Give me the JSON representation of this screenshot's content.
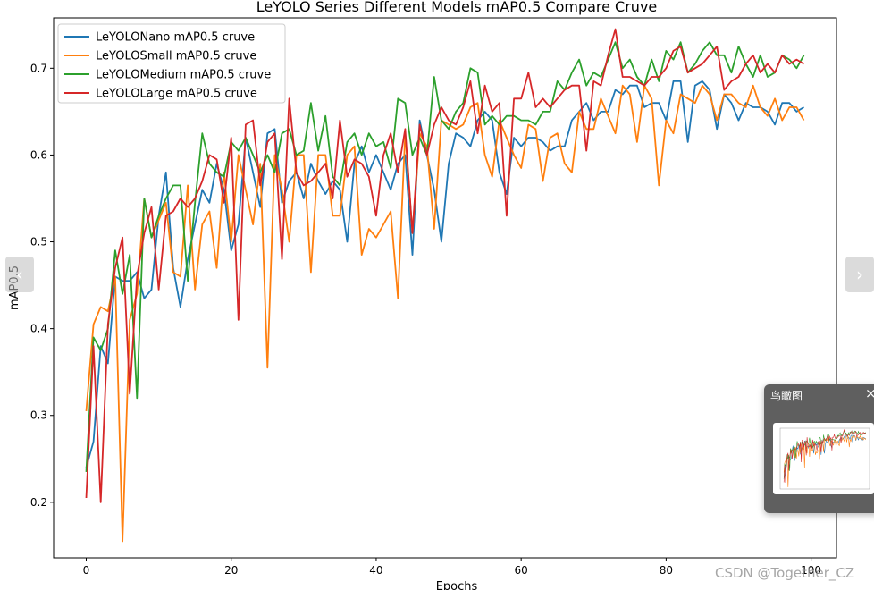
{
  "chart_data": {
    "type": "line",
    "title": "LeYOLO Series Different Models mAP0.5 Compare Cruve",
    "xlabel": "Epochs",
    "ylabel": "mAP0.5",
    "xlim": [
      -4.5,
      103.5
    ],
    "ylim": [
      0.136,
      0.758
    ],
    "xticks": [
      0,
      20,
      40,
      60,
      80,
      100
    ],
    "yticks": [
      0.2,
      0.3,
      0.4,
      0.5,
      0.6,
      0.7
    ],
    "grid": false,
    "legend_position": "top-left",
    "x": [
      0,
      1,
      2,
      3,
      4,
      5,
      6,
      7,
      8,
      9,
      10,
      11,
      12,
      13,
      14,
      15,
      16,
      17,
      18,
      19,
      20,
      21,
      22,
      23,
      24,
      25,
      26,
      27,
      28,
      29,
      30,
      31,
      32,
      33,
      34,
      35,
      36,
      37,
      38,
      39,
      40,
      41,
      42,
      43,
      44,
      45,
      46,
      47,
      48,
      49,
      50,
      51,
      52,
      53,
      54,
      55,
      56,
      57,
      58,
      59,
      60,
      61,
      62,
      63,
      64,
      65,
      66,
      67,
      68,
      69,
      70,
      71,
      72,
      73,
      74,
      75,
      76,
      77,
      78,
      79,
      80,
      81,
      82,
      83,
      84,
      85,
      86,
      87,
      88,
      89,
      90,
      91,
      92,
      93,
      94,
      95,
      96,
      97,
      98,
      99
    ],
    "series": [
      {
        "name": "LeYOLONano mAP0.5 cruve",
        "color": "#1f77b4",
        "values": [
          0.24,
          0.27,
          0.38,
          0.36,
          0.46,
          0.455,
          0.455,
          0.465,
          0.435,
          0.445,
          0.53,
          0.58,
          0.47,
          0.425,
          0.48,
          0.52,
          0.56,
          0.545,
          0.59,
          0.56,
          0.49,
          0.52,
          0.62,
          0.58,
          0.54,
          0.625,
          0.63,
          0.545,
          0.57,
          0.58,
          0.55,
          0.59,
          0.57,
          0.555,
          0.57,
          0.56,
          0.5,
          0.59,
          0.61,
          0.58,
          0.6,
          0.58,
          0.56,
          0.59,
          0.6,
          0.485,
          0.64,
          0.6,
          0.56,
          0.5,
          0.59,
          0.625,
          0.62,
          0.61,
          0.64,
          0.65,
          0.64,
          0.58,
          0.555,
          0.62,
          0.61,
          0.62,
          0.62,
          0.615,
          0.605,
          0.61,
          0.61,
          0.64,
          0.65,
          0.66,
          0.64,
          0.65,
          0.65,
          0.675,
          0.67,
          0.68,
          0.68,
          0.655,
          0.66,
          0.66,
          0.64,
          0.685,
          0.685,
          0.615,
          0.68,
          0.685,
          0.675,
          0.63,
          0.67,
          0.66,
          0.64,
          0.66,
          0.655,
          0.655,
          0.65,
          0.635,
          0.66,
          0.66,
          0.65,
          0.655
        ]
      },
      {
        "name": "LeYOLOSmall mAP0.5 cruve",
        "color": "#ff7f0e",
        "values": [
          0.305,
          0.405,
          0.425,
          0.42,
          0.46,
          0.155,
          0.41,
          0.44,
          0.55,
          0.505,
          0.525,
          0.545,
          0.465,
          0.46,
          0.565,
          0.445,
          0.52,
          0.535,
          0.47,
          0.58,
          0.5,
          0.6,
          0.56,
          0.52,
          0.59,
          0.355,
          0.6,
          0.56,
          0.5,
          0.6,
          0.6,
          0.465,
          0.6,
          0.6,
          0.53,
          0.53,
          0.6,
          0.61,
          0.485,
          0.515,
          0.505,
          0.52,
          0.535,
          0.435,
          0.625,
          0.51,
          0.625,
          0.61,
          0.515,
          0.64,
          0.635,
          0.63,
          0.635,
          0.655,
          0.66,
          0.6,
          0.575,
          0.64,
          0.62,
          0.6,
          0.585,
          0.635,
          0.63,
          0.57,
          0.62,
          0.625,
          0.59,
          0.58,
          0.65,
          0.63,
          0.63,
          0.665,
          0.645,
          0.625,
          0.68,
          0.67,
          0.615,
          0.68,
          0.665,
          0.565,
          0.64,
          0.625,
          0.67,
          0.665,
          0.66,
          0.68,
          0.67,
          0.64,
          0.67,
          0.67,
          0.66,
          0.655,
          0.68,
          0.655,
          0.645,
          0.665,
          0.64,
          0.655,
          0.655,
          0.64
        ]
      },
      {
        "name": "LeYOLOMedium mAP0.5 cruve",
        "color": "#2ca02c",
        "values": [
          0.235,
          0.39,
          0.375,
          0.4,
          0.49,
          0.44,
          0.485,
          0.32,
          0.55,
          0.505,
          0.53,
          0.55,
          0.565,
          0.565,
          0.455,
          0.545,
          0.625,
          0.59,
          0.58,
          0.575,
          0.615,
          0.605,
          0.62,
          0.6,
          0.58,
          0.6,
          0.58,
          0.625,
          0.63,
          0.6,
          0.605,
          0.66,
          0.605,
          0.645,
          0.575,
          0.565,
          0.615,
          0.625,
          0.6,
          0.625,
          0.61,
          0.615,
          0.585,
          0.665,
          0.66,
          0.6,
          0.62,
          0.6,
          0.69,
          0.64,
          0.63,
          0.65,
          0.66,
          0.7,
          0.695,
          0.635,
          0.645,
          0.635,
          0.645,
          0.645,
          0.64,
          0.64,
          0.635,
          0.65,
          0.65,
          0.685,
          0.675,
          0.695,
          0.71,
          0.68,
          0.695,
          0.69,
          0.71,
          0.73,
          0.7,
          0.71,
          0.69,
          0.68,
          0.71,
          0.685,
          0.72,
          0.71,
          0.73,
          0.695,
          0.705,
          0.72,
          0.73,
          0.715,
          0.715,
          0.695,
          0.725,
          0.705,
          0.69,
          0.715,
          0.69,
          0.695,
          0.715,
          0.71,
          0.7,
          0.715
        ]
      },
      {
        "name": "LeYOLOLarge mAP0.5 cruve",
        "color": "#d62728",
        "values": [
          0.205,
          0.38,
          0.2,
          0.405,
          0.47,
          0.505,
          0.325,
          0.46,
          0.51,
          0.54,
          0.445,
          0.53,
          0.535,
          0.55,
          0.54,
          0.55,
          0.57,
          0.6,
          0.595,
          0.545,
          0.62,
          0.41,
          0.635,
          0.64,
          0.565,
          0.615,
          0.625,
          0.48,
          0.665,
          0.58,
          0.565,
          0.57,
          0.58,
          0.59,
          0.55,
          0.64,
          0.575,
          0.595,
          0.59,
          0.575,
          0.53,
          0.6,
          0.625,
          0.58,
          0.63,
          0.51,
          0.635,
          0.6,
          0.635,
          0.655,
          0.64,
          0.635,
          0.655,
          0.685,
          0.625,
          0.68,
          0.65,
          0.66,
          0.53,
          0.665,
          0.665,
          0.695,
          0.655,
          0.665,
          0.655,
          0.665,
          0.675,
          0.68,
          0.68,
          0.605,
          0.685,
          0.68,
          0.715,
          0.745,
          0.69,
          0.69,
          0.685,
          0.68,
          0.69,
          0.69,
          0.7,
          0.72,
          0.725,
          0.695,
          0.7,
          0.705,
          0.715,
          0.725,
          0.675,
          0.685,
          0.69,
          0.705,
          0.715,
          0.695,
          0.705,
          0.695,
          0.715,
          0.705,
          0.71,
          0.705
        ]
      }
    ]
  },
  "ui": {
    "prev_icon": "‹",
    "next_icon": "›",
    "minimap_title": "鸟瞰图",
    "minimap_close_icon": "×",
    "watermark": "CSDN @Together_CZ"
  }
}
